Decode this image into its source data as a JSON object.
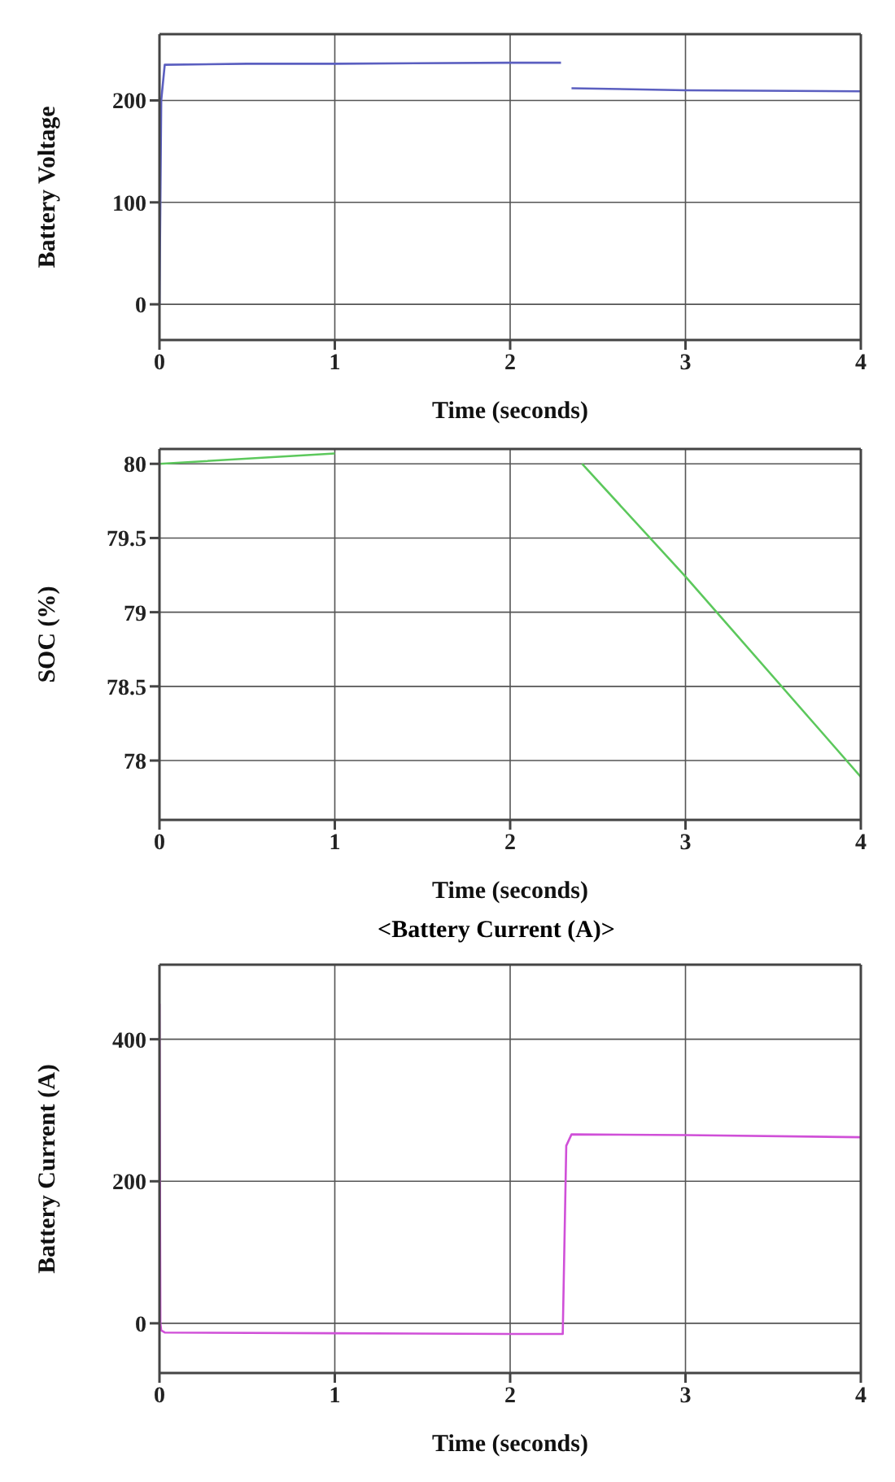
{
  "chart_data": [
    {
      "type": "line",
      "xlabel": "Time (seconds)",
      "ylabel": "Battery Voltage",
      "x": [
        0,
        0.01,
        0.03,
        0.5,
        1,
        2,
        2.29,
        2.3,
        2.32,
        2.35,
        3,
        4
      ],
      "series": [
        {
          "color": "#5b5fc0",
          "values": [
            0,
            200,
            235,
            236,
            236,
            237,
            237,
            null,
            null,
            212,
            210,
            209
          ]
        }
      ],
      "xlim": [
        0,
        4
      ],
      "xticks": [
        0,
        1,
        2,
        3,
        4
      ],
      "ylim": [
        -35,
        265
      ],
      "yticks": [
        0,
        100,
        200
      ],
      "grid": true
    },
    {
      "type": "line",
      "xlabel": "Time (seconds)",
      "ylabel": "SOC (%)",
      "x": [
        0,
        1,
        1.8,
        2.35,
        2.41,
        3,
        4
      ],
      "series": [
        {
          "color": "#5cc85c",
          "values": [
            80,
            80.07,
            null,
            null,
            80,
            79.24,
            77.89
          ]
        }
      ],
      "xlim": [
        0,
        4
      ],
      "xticks": [
        0,
        1,
        2,
        3,
        4
      ],
      "ylim": [
        77.6,
        80.1
      ],
      "yticks": [
        78,
        78.5,
        79,
        79.5,
        80
      ],
      "grid": true
    },
    {
      "type": "line",
      "title": "<Battery Current (A)>",
      "xlabel": "Time (seconds)",
      "ylabel": "Battery Current (A)",
      "x": [
        0,
        0.005,
        0.01,
        0.03,
        1,
        2,
        2.3,
        2.32,
        2.35,
        3,
        4
      ],
      "series": [
        {
          "color": "#d050d8",
          "values": [
            450,
            0,
            -10,
            -13,
            -14,
            -15,
            -15,
            250,
            266,
            265,
            262
          ]
        }
      ],
      "xlim": [
        0,
        4
      ],
      "xticks": [
        0,
        1,
        2,
        3,
        4
      ],
      "ylim": [
        -70,
        505
      ],
      "yticks": [
        0,
        200,
        400
      ],
      "grid": true
    }
  ]
}
